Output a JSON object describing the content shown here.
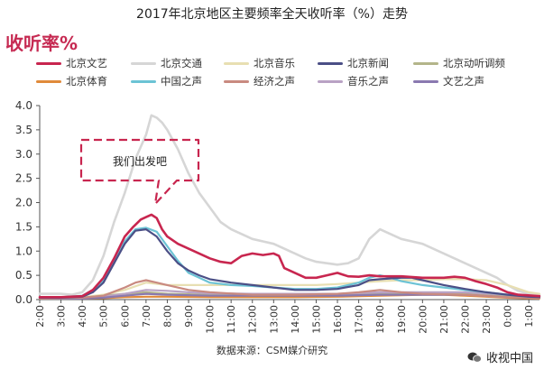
{
  "chart_data": {
    "type": "line",
    "title": "2017年北京地区主要频率全天收听率（%）走势",
    "unit_label": "收听率%",
    "source": "数据来源：CSM媒介研究",
    "watermark": "收视中国",
    "annotation": "我们出发吧",
    "ylim": [
      0,
      4.0
    ],
    "yticks": [
      "0.0",
      "0.5",
      "1.0",
      "1.5",
      "2.0",
      "2.5",
      "3.0",
      "3.5",
      "4.0"
    ],
    "xlim": [
      2,
      25.5
    ],
    "xticks": [
      "2:00",
      "3:00",
      "4:00",
      "5:00",
      "6:00",
      "7:00",
      "8:00",
      "9:00",
      "10:00",
      "11:00",
      "12:00",
      "13:00",
      "14:00",
      "15:00",
      "16:00",
      "17:00",
      "18:00",
      "19:00",
      "20:00",
      "21:00",
      "22:00",
      "23:00",
      "0:00",
      "1:00"
    ],
    "grid": false,
    "legend_position": "top",
    "series": [
      {
        "name": "北京文艺",
        "color": "#c8264f",
        "points": [
          [
            2,
            0.05
          ],
          [
            3,
            0.05
          ],
          [
            4,
            0.07
          ],
          [
            4.5,
            0.2
          ],
          [
            5,
            0.45
          ],
          [
            5.5,
            0.85
          ],
          [
            6,
            1.3
          ],
          [
            6.4,
            1.5
          ],
          [
            6.75,
            1.65
          ],
          [
            7,
            1.7
          ],
          [
            7.25,
            1.75
          ],
          [
            7.5,
            1.68
          ],
          [
            7.75,
            1.45
          ],
          [
            8,
            1.3
          ],
          [
            8.5,
            1.15
          ],
          [
            9,
            1.05
          ],
          [
            9.5,
            0.95
          ],
          [
            10,
            0.85
          ],
          [
            10.5,
            0.78
          ],
          [
            11,
            0.75
          ],
          [
            11.5,
            0.9
          ],
          [
            12,
            0.95
          ],
          [
            12.5,
            0.92
          ],
          [
            13,
            0.95
          ],
          [
            13.25,
            0.9
          ],
          [
            13.5,
            0.65
          ],
          [
            14,
            0.55
          ],
          [
            14.5,
            0.45
          ],
          [
            15,
            0.45
          ],
          [
            15.5,
            0.5
          ],
          [
            16,
            0.55
          ],
          [
            16.5,
            0.48
          ],
          [
            17,
            0.47
          ],
          [
            17.5,
            0.5
          ],
          [
            18,
            0.48
          ],
          [
            19,
            0.48
          ],
          [
            20,
            0.45
          ],
          [
            21,
            0.45
          ],
          [
            21.5,
            0.47
          ],
          [
            22,
            0.45
          ],
          [
            22.5,
            0.38
          ],
          [
            23,
            0.32
          ],
          [
            23.5,
            0.25
          ],
          [
            24,
            0.15
          ],
          [
            24.5,
            0.1
          ],
          [
            25.5,
            0.07
          ]
        ]
      },
      {
        "name": "北京交通",
        "color": "#d6d6d6",
        "points": [
          [
            2,
            0.12
          ],
          [
            3,
            0.12
          ],
          [
            3.5,
            0.1
          ],
          [
            4,
            0.15
          ],
          [
            4.5,
            0.4
          ],
          [
            5,
            0.9
          ],
          [
            5.5,
            1.6
          ],
          [
            6,
            2.2
          ],
          [
            6.5,
            2.9
          ],
          [
            7,
            3.4
          ],
          [
            7.25,
            3.8
          ],
          [
            7.5,
            3.75
          ],
          [
            7.75,
            3.65
          ],
          [
            8,
            3.5
          ],
          [
            8.5,
            3.1
          ],
          [
            9,
            2.6
          ],
          [
            9.5,
            2.2
          ],
          [
            10,
            1.9
          ],
          [
            10.5,
            1.6
          ],
          [
            11,
            1.45
          ],
          [
            11.5,
            1.35
          ],
          [
            12,
            1.25
          ],
          [
            12.5,
            1.2
          ],
          [
            13,
            1.15
          ],
          [
            13.5,
            1.05
          ],
          [
            14,
            0.95
          ],
          [
            14.5,
            0.85
          ],
          [
            15,
            0.78
          ],
          [
            15.5,
            0.75
          ],
          [
            16,
            0.72
          ],
          [
            16.5,
            0.75
          ],
          [
            17,
            0.85
          ],
          [
            17.5,
            1.25
          ],
          [
            18,
            1.45
          ],
          [
            18.5,
            1.35
          ],
          [
            19,
            1.25
          ],
          [
            19.5,
            1.2
          ],
          [
            20,
            1.15
          ],
          [
            20.5,
            1.05
          ],
          [
            21,
            0.95
          ],
          [
            21.5,
            0.85
          ],
          [
            22,
            0.75
          ],
          [
            22.5,
            0.65
          ],
          [
            23,
            0.55
          ],
          [
            23.5,
            0.45
          ],
          [
            24,
            0.3
          ],
          [
            24.5,
            0.18
          ],
          [
            25,
            0.12
          ],
          [
            25.5,
            0.1
          ]
        ]
      },
      {
        "name": "北京音乐",
        "color": "#e8dfb2",
        "points": [
          [
            2,
            0.05
          ],
          [
            4,
            0.05
          ],
          [
            5,
            0.1
          ],
          [
            6,
            0.2
          ],
          [
            7,
            0.35
          ],
          [
            8,
            0.3
          ],
          [
            9,
            0.3
          ],
          [
            10,
            0.3
          ],
          [
            11,
            0.3
          ],
          [
            12,
            0.3
          ],
          [
            13,
            0.3
          ],
          [
            14,
            0.3
          ],
          [
            15,
            0.3
          ],
          [
            16,
            0.32
          ],
          [
            17,
            0.35
          ],
          [
            18,
            0.38
          ],
          [
            19,
            0.4
          ],
          [
            20,
            0.4
          ],
          [
            21,
            0.42
          ],
          [
            22,
            0.42
          ],
          [
            23,
            0.4
          ],
          [
            24,
            0.3
          ],
          [
            25,
            0.15
          ],
          [
            25.5,
            0.12
          ]
        ]
      },
      {
        "name": "北京新闻",
        "color": "#4b4f86",
        "points": [
          [
            2,
            0.04
          ],
          [
            3,
            0.04
          ],
          [
            4,
            0.06
          ],
          [
            4.5,
            0.15
          ],
          [
            5,
            0.35
          ],
          [
            5.5,
            0.75
          ],
          [
            6,
            1.15
          ],
          [
            6.5,
            1.42
          ],
          [
            7,
            1.45
          ],
          [
            7.5,
            1.3
          ],
          [
            8,
            1.0
          ],
          [
            8.5,
            0.75
          ],
          [
            9,
            0.6
          ],
          [
            9.5,
            0.5
          ],
          [
            10,
            0.42
          ],
          [
            11,
            0.35
          ],
          [
            12,
            0.3
          ],
          [
            13,
            0.25
          ],
          [
            14,
            0.2
          ],
          [
            15,
            0.2
          ],
          [
            16,
            0.22
          ],
          [
            17,
            0.3
          ],
          [
            17.5,
            0.4
          ],
          [
            18,
            0.42
          ],
          [
            19,
            0.45
          ],
          [
            19.5,
            0.45
          ],
          [
            20,
            0.4
          ],
          [
            21,
            0.3
          ],
          [
            22,
            0.22
          ],
          [
            23,
            0.15
          ],
          [
            24,
            0.1
          ],
          [
            25,
            0.06
          ],
          [
            25.5,
            0.05
          ]
        ]
      },
      {
        "name": "北京动听调频",
        "color": "#b3b58a",
        "points": [
          [
            2,
            0.03
          ],
          [
            4,
            0.04
          ],
          [
            5,
            0.08
          ],
          [
            6,
            0.12
          ],
          [
            7,
            0.15
          ],
          [
            8,
            0.12
          ],
          [
            10,
            0.1
          ],
          [
            12,
            0.1
          ],
          [
            14,
            0.1
          ],
          [
            16,
            0.1
          ],
          [
            18,
            0.12
          ],
          [
            20,
            0.12
          ],
          [
            22,
            0.12
          ],
          [
            24,
            0.08
          ],
          [
            25.5,
            0.05
          ]
        ]
      },
      {
        "name": "北京体育",
        "color": "#e08a3a",
        "points": [
          [
            2,
            0.02
          ],
          [
            4,
            0.02
          ],
          [
            5,
            0.03
          ],
          [
            6,
            0.05
          ],
          [
            7,
            0.06
          ],
          [
            8,
            0.06
          ],
          [
            10,
            0.05
          ],
          [
            12,
            0.05
          ],
          [
            14,
            0.05
          ],
          [
            16,
            0.06
          ],
          [
            18,
            0.08
          ],
          [
            20,
            0.1
          ],
          [
            21,
            0.1
          ],
          [
            22,
            0.08
          ],
          [
            24,
            0.04
          ],
          [
            25.5,
            0.02
          ]
        ]
      },
      {
        "name": "中国之声",
        "color": "#6cc3d5",
        "points": [
          [
            2,
            0.05
          ],
          [
            3,
            0.05
          ],
          [
            4,
            0.08
          ],
          [
            4.5,
            0.2
          ],
          [
            5,
            0.4
          ],
          [
            5.5,
            0.8
          ],
          [
            6,
            1.2
          ],
          [
            6.5,
            1.45
          ],
          [
            7,
            1.48
          ],
          [
            7.5,
            1.4
          ],
          [
            8,
            1.1
          ],
          [
            8.5,
            0.8
          ],
          [
            9,
            0.55
          ],
          [
            9.5,
            0.45
          ],
          [
            10,
            0.35
          ],
          [
            11,
            0.3
          ],
          [
            12,
            0.28
          ],
          [
            13,
            0.25
          ],
          [
            14,
            0.22
          ],
          [
            15,
            0.22
          ],
          [
            16,
            0.25
          ],
          [
            16.5,
            0.3
          ],
          [
            17,
            0.35
          ],
          [
            17.5,
            0.45
          ],
          [
            18,
            0.5
          ],
          [
            18.5,
            0.45
          ],
          [
            19,
            0.38
          ],
          [
            20,
            0.3
          ],
          [
            21,
            0.25
          ],
          [
            22,
            0.2
          ],
          [
            23,
            0.15
          ],
          [
            24,
            0.1
          ],
          [
            25,
            0.08
          ],
          [
            25.5,
            0.07
          ]
        ]
      },
      {
        "name": "经济之声",
        "color": "#c98a80",
        "points": [
          [
            2,
            0.02
          ],
          [
            4,
            0.04
          ],
          [
            5,
            0.08
          ],
          [
            6,
            0.25
          ],
          [
            6.5,
            0.35
          ],
          [
            7,
            0.4
          ],
          [
            7.5,
            0.35
          ],
          [
            8,
            0.3
          ],
          [
            9,
            0.2
          ],
          [
            10,
            0.15
          ],
          [
            12,
            0.1
          ],
          [
            14,
            0.1
          ],
          [
            16,
            0.12
          ],
          [
            17,
            0.15
          ],
          [
            18,
            0.2
          ],
          [
            19,
            0.15
          ],
          [
            20,
            0.12
          ],
          [
            22,
            0.1
          ],
          [
            24,
            0.05
          ],
          [
            25.5,
            0.03
          ]
        ]
      },
      {
        "name": "音乐之声",
        "color": "#b9a2c4",
        "points": [
          [
            2,
            0.03
          ],
          [
            4,
            0.04
          ],
          [
            5,
            0.06
          ],
          [
            6,
            0.12
          ],
          [
            7,
            0.2
          ],
          [
            8,
            0.18
          ],
          [
            9,
            0.15
          ],
          [
            10,
            0.13
          ],
          [
            12,
            0.12
          ],
          [
            14,
            0.12
          ],
          [
            16,
            0.12
          ],
          [
            18,
            0.15
          ],
          [
            20,
            0.15
          ],
          [
            22,
            0.15
          ],
          [
            24,
            0.1
          ],
          [
            25.5,
            0.05
          ]
        ]
      },
      {
        "name": "文艺之声",
        "color": "#8a79b0",
        "points": [
          [
            2,
            0.02
          ],
          [
            4,
            0.02
          ],
          [
            5,
            0.04
          ],
          [
            6,
            0.08
          ],
          [
            7,
            0.12
          ],
          [
            8,
            0.1
          ],
          [
            10,
            0.08
          ],
          [
            12,
            0.08
          ],
          [
            14,
            0.08
          ],
          [
            16,
            0.08
          ],
          [
            18,
            0.1
          ],
          [
            20,
            0.1
          ],
          [
            22,
            0.1
          ],
          [
            24,
            0.05
          ],
          [
            25.5,
            0.03
          ]
        ]
      }
    ]
  }
}
